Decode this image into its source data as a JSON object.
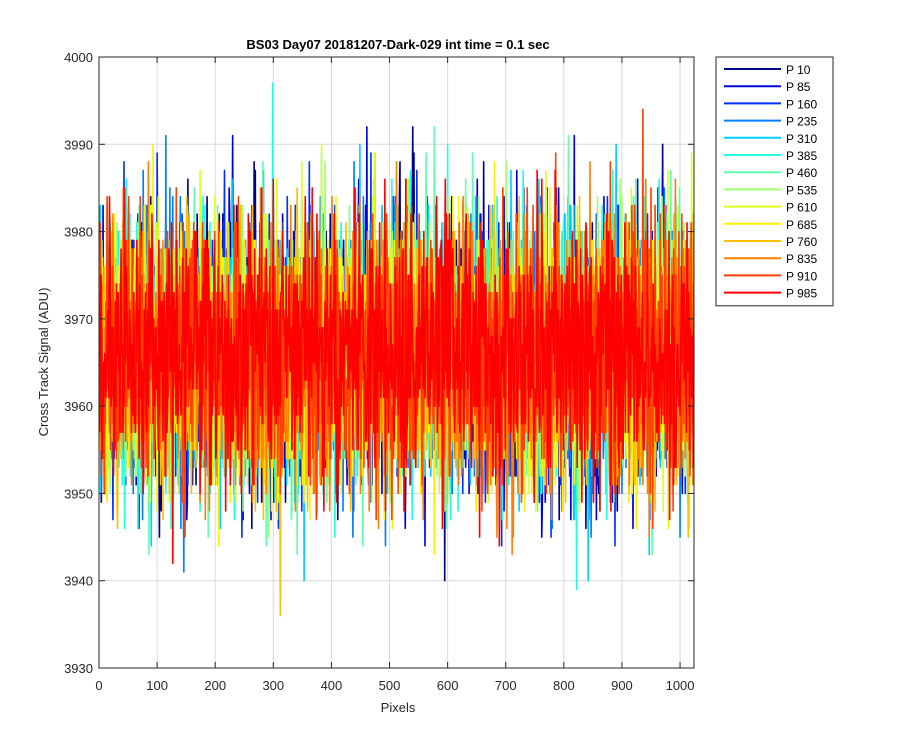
{
  "chart_data": {
    "type": "line",
    "title": "BS03 Day07 20181207-Dark-029 int time = 0.1 sec",
    "xlabel": "Pixels",
    "ylabel": "Cross Track Signal (ADU)",
    "xlim": [
      0,
      1024
    ],
    "ylim": [
      3930,
      4000
    ],
    "xticks": [
      0,
      100,
      200,
      300,
      400,
      500,
      600,
      700,
      800,
      900,
      1000
    ],
    "yticks": [
      3930,
      3940,
      3950,
      3960,
      3970,
      3980,
      3990,
      4000
    ],
    "grid": true,
    "legend_position": "outside-top-right",
    "n_points": 1024,
    "series": [
      {
        "name": "P 10",
        "color": "#00008f",
        "mean": 3966,
        "std": 7.5,
        "seed": 11
      },
      {
        "name": "P 85",
        "color": "#0000df",
        "mean": 3966,
        "std": 7.5,
        "seed": 23
      },
      {
        "name": "P 160",
        "color": "#0030ff",
        "mean": 3966,
        "std": 7.5,
        "seed": 37
      },
      {
        "name": "P 235",
        "color": "#0080ff",
        "mean": 3966,
        "std": 7.5,
        "seed": 41
      },
      {
        "name": "P 310",
        "color": "#00cfff",
        "mean": 3966,
        "std": 7.5,
        "seed": 53
      },
      {
        "name": "P 385",
        "color": "#20ffdf",
        "mean": 3966,
        "std": 7.5,
        "seed": 67
      },
      {
        "name": "P 460",
        "color": "#60ffb0",
        "mean": 3966,
        "std": 7.5,
        "seed": 71
      },
      {
        "name": "P 535",
        "color": "#a0ff70",
        "mean": 3966,
        "std": 7.5,
        "seed": 83
      },
      {
        "name": "P 610",
        "color": "#dfff20",
        "mean": 3966,
        "std": 7.5,
        "seed": 97
      },
      {
        "name": "P 685",
        "color": "#ffef00",
        "mean": 3966,
        "std": 7.5,
        "seed": 101
      },
      {
        "name": "P 760",
        "color": "#ffbf00",
        "mean": 3966,
        "std": 7.5,
        "seed": 113
      },
      {
        "name": "P 835",
        "color": "#ff8000",
        "mean": 3966,
        "std": 7.5,
        "seed": 127
      },
      {
        "name": "P 910",
        "color": "#ff4000",
        "mean": 3966,
        "std": 7.5,
        "seed": 131
      },
      {
        "name": "P 985",
        "color": "#ff0000",
        "mean": 3966,
        "std": 7.5,
        "seed": 149
      }
    ]
  }
}
